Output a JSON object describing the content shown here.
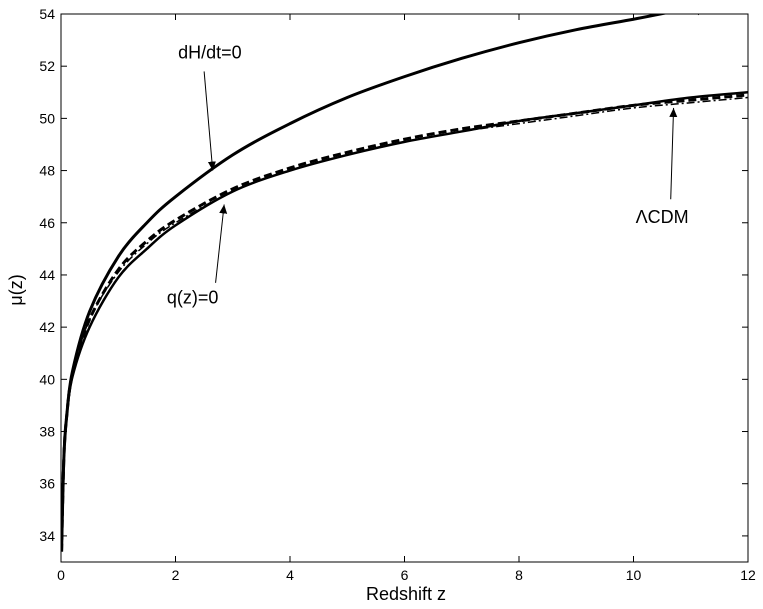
{
  "chart_data": {
    "type": "line",
    "xlabel": "Redshift z",
    "ylabel": "μ(z)",
    "xlim": [
      0,
      12
    ],
    "ylim": [
      33,
      54
    ],
    "xticks": [
      0,
      2,
      4,
      6,
      8,
      10,
      12
    ],
    "yticks": [
      34,
      36,
      38,
      40,
      42,
      44,
      46,
      48,
      50,
      52,
      54
    ],
    "grid": false,
    "legend": "none",
    "series": [
      {
        "style": "solid-thick",
        "x": [
          0.01,
          0.05,
          0.1,
          0.2,
          0.5,
          1,
          1.5,
          2,
          3,
          4,
          5,
          6,
          7,
          8,
          9,
          10,
          11,
          11.15
        ],
        "y": [
          33.4,
          37.0,
          38.6,
          40.3,
          42.6,
          44.7,
          46.0,
          47.0,
          48.6,
          49.8,
          50.8,
          51.6,
          52.3,
          52.9,
          53.4,
          53.8,
          54.2,
          54.0
        ]
      },
      {
        "style": "dashed",
        "x": [
          0.01,
          0.05,
          0.1,
          0.2,
          0.5,
          1,
          1.5,
          2,
          3,
          4,
          5,
          6,
          7,
          8,
          9,
          10,
          11,
          12
        ],
        "y": [
          33.4,
          37.0,
          38.6,
          40.2,
          42.3,
          44.2,
          45.3,
          46.1,
          47.3,
          48.1,
          48.7,
          49.2,
          49.6,
          49.9,
          50.2,
          50.5,
          50.7,
          50.9
        ]
      },
      {
        "style": "dashdot",
        "x": [
          0.01,
          0.05,
          0.1,
          0.2,
          0.5,
          1,
          1.5,
          2,
          3,
          4,
          5,
          6,
          7,
          8,
          9,
          10,
          11,
          12
        ],
        "y": [
          33.4,
          37.0,
          38.6,
          40.2,
          42.3,
          44.1,
          45.2,
          46.0,
          47.2,
          48.0,
          48.6,
          49.1,
          49.5,
          49.8,
          50.1,
          50.4,
          50.6,
          50.8
        ]
      },
      {
        "style": "solid",
        "x": [
          0.01,
          0.05,
          0.1,
          0.2,
          0.5,
          1,
          1.5,
          2,
          3,
          4,
          5,
          6,
          7,
          8,
          9,
          10,
          11,
          12
        ],
        "y": [
          33.4,
          37.0,
          38.6,
          40.1,
          42.0,
          43.9,
          45.0,
          45.9,
          47.2,
          48.0,
          48.6,
          49.1,
          49.5,
          49.9,
          50.2,
          50.5,
          50.8,
          51.0
        ]
      }
    ],
    "annotations": [
      {
        "text": "dH/dt=0",
        "text_xy": [
          2.6,
          52.3
        ],
        "arrow_from": [
          2.5,
          51.8
        ],
        "arrow_to": [
          2.65,
          48.0
        ]
      },
      {
        "text": "q(z)=0",
        "text_xy": [
          2.3,
          42.9
        ],
        "arrow_from": [
          2.7,
          43.7
        ],
        "arrow_to": [
          2.85,
          46.7
        ]
      },
      {
        "text": "ΛCDM",
        "text_xy": [
          10.5,
          46.0
        ],
        "arrow_from": [
          10.65,
          46.9
        ],
        "arrow_to": [
          10.7,
          50.4
        ]
      }
    ]
  }
}
